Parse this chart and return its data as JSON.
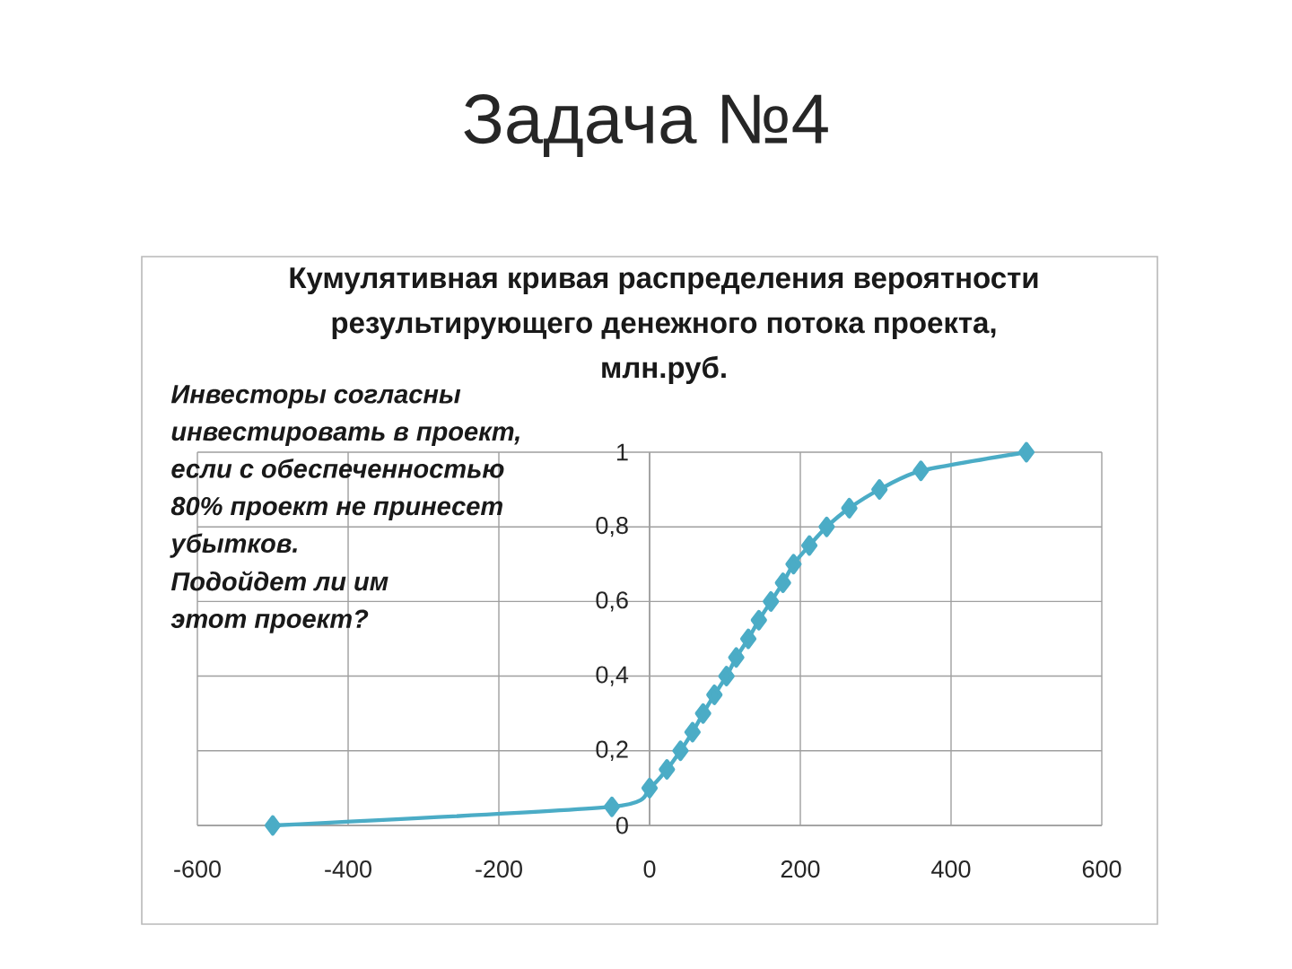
{
  "chart_data": {
    "type": "line",
    "title": "Задача №4",
    "subtitle": "Кумулятивная кривая распределения вероятности результирующего денежного потока проекта, млн.руб.",
    "annotations": [
      "Инвесторы согласны инвестировать в проект, если с обеспеченностью 80%  проект не принесет убытков.",
      "Подойдет ли им этот проект?"
    ],
    "x": [
      -500,
      -50,
      0,
      23,
      41,
      57,
      71,
      86,
      102,
      115,
      131,
      145,
      161,
      177,
      191,
      212,
      235,
      265,
      305,
      360,
      500
    ],
    "series": [
      {
        "color": "#4bacc6",
        "values": [
          0,
          0.05,
          0.1,
          0.15,
          0.2,
          0.25,
          0.3,
          0.35,
          0.4,
          0.45,
          0.5,
          0.55,
          0.6,
          0.65,
          0.7,
          0.75,
          0.8,
          0.85,
          0.9,
          0.95,
          1
        ]
      }
    ],
    "xlim": [
      -600,
      600
    ],
    "xticks": [
      -600,
      -400,
      -200,
      0,
      200,
      400,
      600
    ],
    "ylim": [
      0,
      1
    ],
    "yticks": [
      0,
      {
        "value": 0.2,
        "label": "0,2"
      },
      {
        "value": 0.4,
        "label": "0,4"
      },
      {
        "value": 0.6,
        "label": "0,6"
      },
      {
        "value": 0.8,
        "label": "0,8"
      },
      1
    ],
    "grid": true,
    "marker": "diamond",
    "line_style": "solid"
  }
}
